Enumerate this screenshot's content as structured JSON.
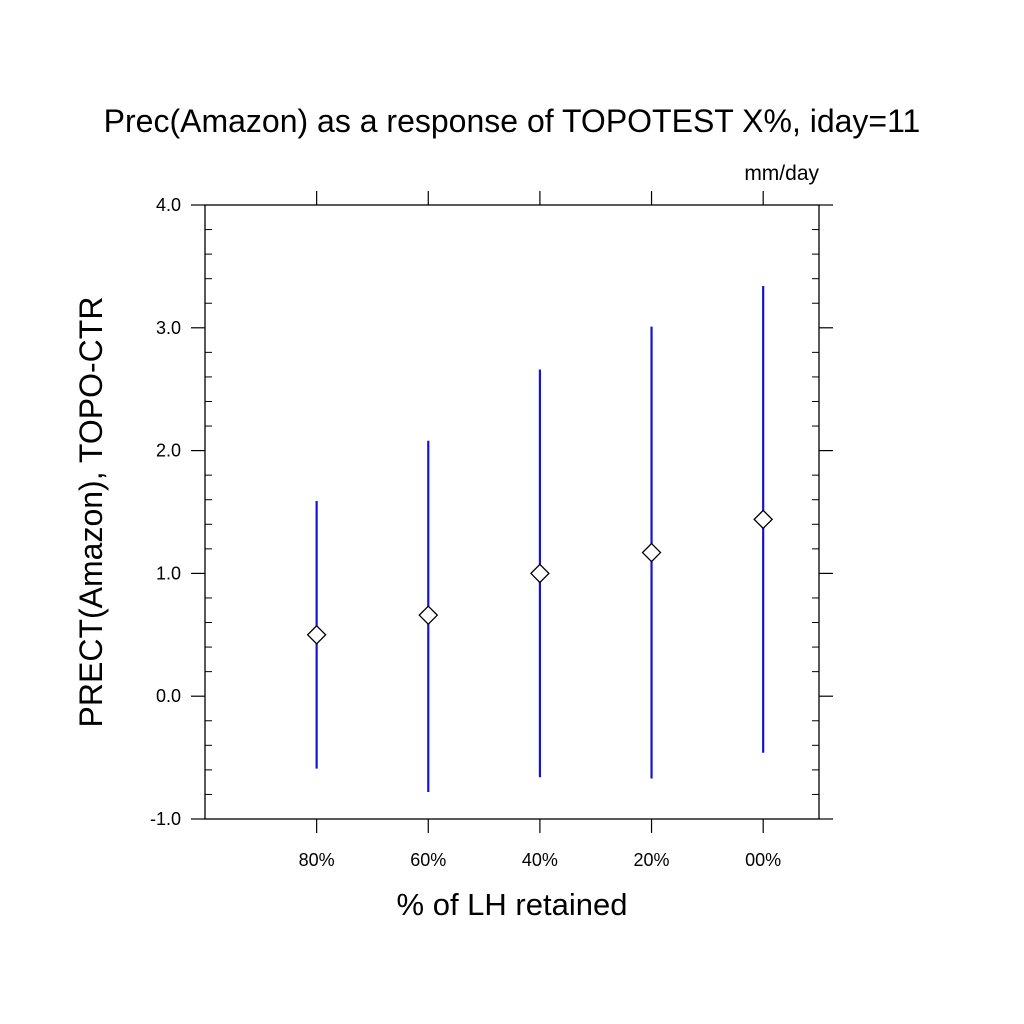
{
  "chart_data": {
    "type": "scatter",
    "title": "Prec(Amazon) as a response of TOPOTEST X%, iday=11",
    "units": "mm/day",
    "xlabel": "% of LH retained",
    "ylabel": "PRECT(Amazon), TOPO-CTR",
    "categories": [
      "80%",
      "60%",
      "40%",
      "20%",
      "00%"
    ],
    "series": [
      {
        "values": [
          0.5,
          0.66,
          1.0,
          1.17,
          1.44
        ],
        "range_low": [
          -0.59,
          -0.78,
          -0.66,
          -0.67,
          -0.46
        ],
        "range_high": [
          1.59,
          2.08,
          2.66,
          3.01,
          3.34
        ],
        "marker": "diamond",
        "marker_color": "#000000",
        "line_color": "#1414d2"
      }
    ],
    "ylim": [
      -1.0,
      4.0
    ],
    "y_ticks": [
      "-1.0",
      "0.0",
      "1.0",
      "2.0",
      "3.0",
      "4.0"
    ],
    "y_minor_step": 0.2,
    "grid": false,
    "legend": "none"
  }
}
